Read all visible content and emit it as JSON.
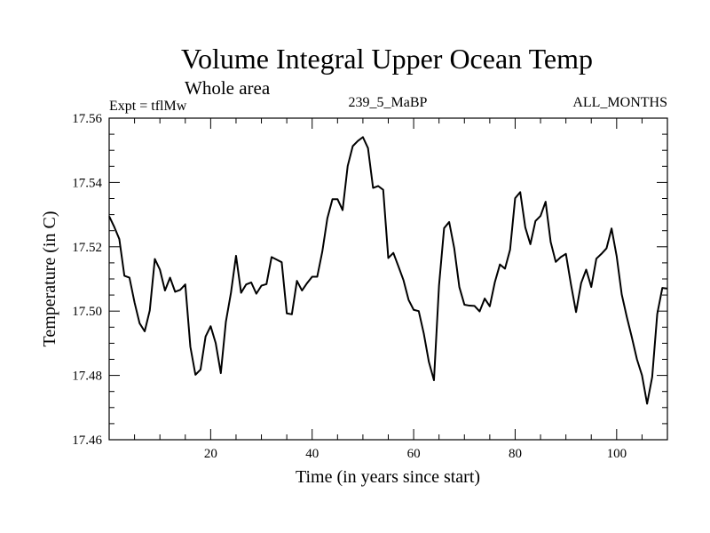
{
  "chart_data": {
    "type": "line",
    "title": "Volume Integral Upper Ocean Temp",
    "subtitle": "Whole area",
    "expt_label": "Expt = tflMw",
    "run_label": "239_5_MaBP",
    "months_label": "ALL_MONTHS",
    "xlabel": "Time (in years since start)",
    "ylabel": "Temperature (in C)",
    "xlim": [
      0,
      110
    ],
    "ylim": [
      17.46,
      17.56
    ],
    "x_ticks": [
      20,
      40,
      60,
      80,
      100
    ],
    "y_ticks": [
      "17.46",
      "17.48",
      "17.50",
      "17.52",
      "17.54",
      "17.56"
    ],
    "grid": false,
    "series": [
      {
        "name": "Temperature",
        "color": "#000000",
        "x": [
          0,
          1,
          2,
          3,
          4,
          5,
          6,
          7,
          8,
          9,
          10,
          11,
          12,
          13,
          14,
          15,
          16,
          17,
          18,
          19,
          20,
          21,
          22,
          23,
          24,
          25,
          26,
          27,
          28,
          29,
          30,
          31,
          32,
          33,
          34,
          35,
          36,
          37,
          38,
          39,
          40,
          41,
          42,
          43,
          44,
          45,
          46,
          47,
          48,
          49,
          50,
          51,
          52,
          53,
          54,
          55,
          56,
          57,
          58,
          59,
          60,
          61,
          62,
          63,
          64,
          65,
          66,
          67,
          68,
          69,
          70,
          71,
          72,
          73,
          74,
          75,
          76,
          77,
          78,
          79,
          80,
          81,
          82,
          83,
          84,
          85,
          86,
          87,
          88,
          89,
          90,
          91,
          92,
          93,
          94,
          95,
          96,
          97,
          98,
          99,
          100,
          101,
          102,
          103,
          104,
          105,
          106,
          107,
          108,
          109,
          110
        ],
        "values": [
          17.5295,
          17.5262,
          17.5224,
          17.511,
          17.5104,
          17.5027,
          17.4962,
          17.4937,
          17.5002,
          17.5162,
          17.5129,
          17.5064,
          17.5104,
          17.506,
          17.5066,
          17.5083,
          17.4889,
          17.4802,
          17.4818,
          17.4921,
          17.4953,
          17.49,
          17.4807,
          17.4967,
          17.5057,
          17.5172,
          17.5057,
          17.5083,
          17.5089,
          17.5054,
          17.5079,
          17.5084,
          17.5168,
          17.516,
          17.5152,
          17.4993,
          17.499,
          17.5094,
          17.5064,
          17.5087,
          17.5107,
          17.5107,
          17.5185,
          17.5289,
          17.5348,
          17.5348,
          17.5314,
          17.5451,
          17.5513,
          17.5529,
          17.5541,
          17.5507,
          17.5383,
          17.5389,
          17.5377,
          17.5165,
          17.5181,
          17.5139,
          17.5096,
          17.5035,
          17.5004,
          17.5,
          17.493,
          17.4842,
          17.4785,
          17.508,
          17.5258,
          17.5277,
          17.5195,
          17.5075,
          17.502,
          17.5017,
          17.5016,
          17.4999,
          17.5039,
          17.5015,
          17.509,
          17.5145,
          17.5132,
          17.5191,
          17.5351,
          17.537,
          17.526,
          17.5208,
          17.528,
          17.5296,
          17.534,
          17.5215,
          17.5153,
          17.5168,
          17.5178,
          17.5083,
          17.4997,
          17.5087,
          17.5129,
          17.5075,
          17.5163,
          17.5178,
          17.5195,
          17.5257,
          17.5171,
          17.5052,
          17.4982,
          17.4918,
          17.485,
          17.48,
          17.4712,
          17.4795,
          17.4991,
          17.5072,
          17.507
        ]
      }
    ]
  }
}
